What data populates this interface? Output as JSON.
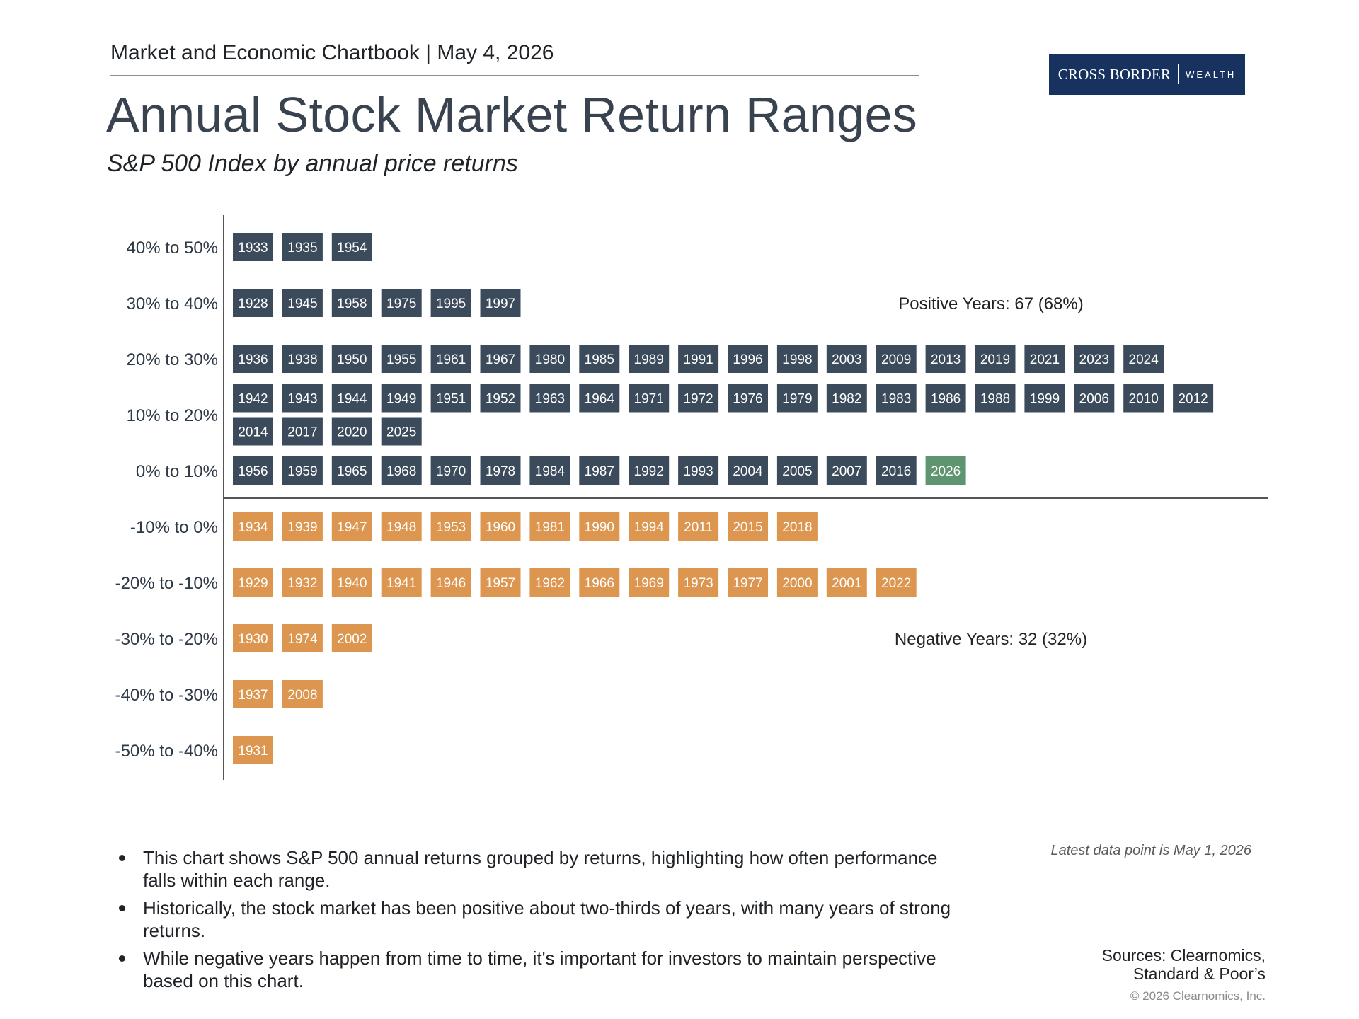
{
  "header": {
    "chartbook_line": "Market and Economic Chartbook | May 4, 2026",
    "logo_main": "CROSS BORDER",
    "logo_sub": "WEALTH"
  },
  "title": "Annual Stock Market Return Ranges",
  "subtitle": "S&P 500 Index by annual price returns",
  "colors": {
    "positive": "#3b4b5c",
    "negative": "#dd964f",
    "latest": "#5e9470",
    "logo_bg": "#18325f"
  },
  "chart_data": {
    "type": "table",
    "rows": [
      {
        "label": "40% to 50%",
        "years": [
          "1933",
          "1935",
          "1954"
        ]
      },
      {
        "label": "30% to 40%",
        "years": [
          "1928",
          "1945",
          "1958",
          "1975",
          "1995",
          "1997"
        ]
      },
      {
        "label": "20% to 30%",
        "years": [
          "1936",
          "1938",
          "1950",
          "1955",
          "1961",
          "1967",
          "1980",
          "1985",
          "1989",
          "1991",
          "1996",
          "1998",
          "2003",
          "2009",
          "2013",
          "2019",
          "2021",
          "2023",
          "2024"
        ]
      },
      {
        "label": "10% to 20%",
        "years": [
          "1942",
          "1943",
          "1944",
          "1949",
          "1951",
          "1952",
          "1963",
          "1964",
          "1971",
          "1972",
          "1976",
          "1979",
          "1982",
          "1983",
          "1986",
          "1988",
          "1999",
          "2006",
          "2010",
          "2012",
          "2014",
          "2017",
          "2020",
          "2025"
        ]
      },
      {
        "label": "0% to 10%",
        "years": [
          "1956",
          "1959",
          "1965",
          "1968",
          "1970",
          "1978",
          "1984",
          "1987",
          "1992",
          "1993",
          "2004",
          "2005",
          "2007",
          "2016",
          "2026"
        ]
      },
      {
        "label": "-10% to 0%",
        "years": [
          "1934",
          "1939",
          "1947",
          "1948",
          "1953",
          "1960",
          "1981",
          "1990",
          "1994",
          "2011",
          "2015",
          "2018"
        ]
      },
      {
        "label": "-20% to -10%",
        "years": [
          "1929",
          "1932",
          "1940",
          "1941",
          "1946",
          "1957",
          "1962",
          "1966",
          "1969",
          "1973",
          "1977",
          "2000",
          "2001",
          "2022"
        ]
      },
      {
        "label": "-30% to -20%",
        "years": [
          "1930",
          "1974",
          "2002"
        ]
      },
      {
        "label": "-40% to -30%",
        "years": [
          "1937",
          "2008"
        ]
      },
      {
        "label": "-50% to -40%",
        "years": [
          "1931"
        ]
      }
    ],
    "highlight_year": "2026",
    "annotations": {
      "positive": "Positive Years: 67 (68%)",
      "negative": "Negative Years: 32 (32%)"
    }
  },
  "bullets": [
    "This chart shows S&P 500 annual returns grouped by returns, highlighting how often performance falls within each range.",
    "Historically, the stock market has been positive about two-thirds of years, with many years of strong returns.",
    "While negative years happen from time to time, it's important for investors to maintain perspective based on this chart."
  ],
  "footer": {
    "latest": "Latest data point is May 1, 2026",
    "sources_line1": "Sources: Clearnomics,",
    "sources_line2": "Standard & Poor’s",
    "copyright": "© 2026 Clearnomics, Inc."
  }
}
